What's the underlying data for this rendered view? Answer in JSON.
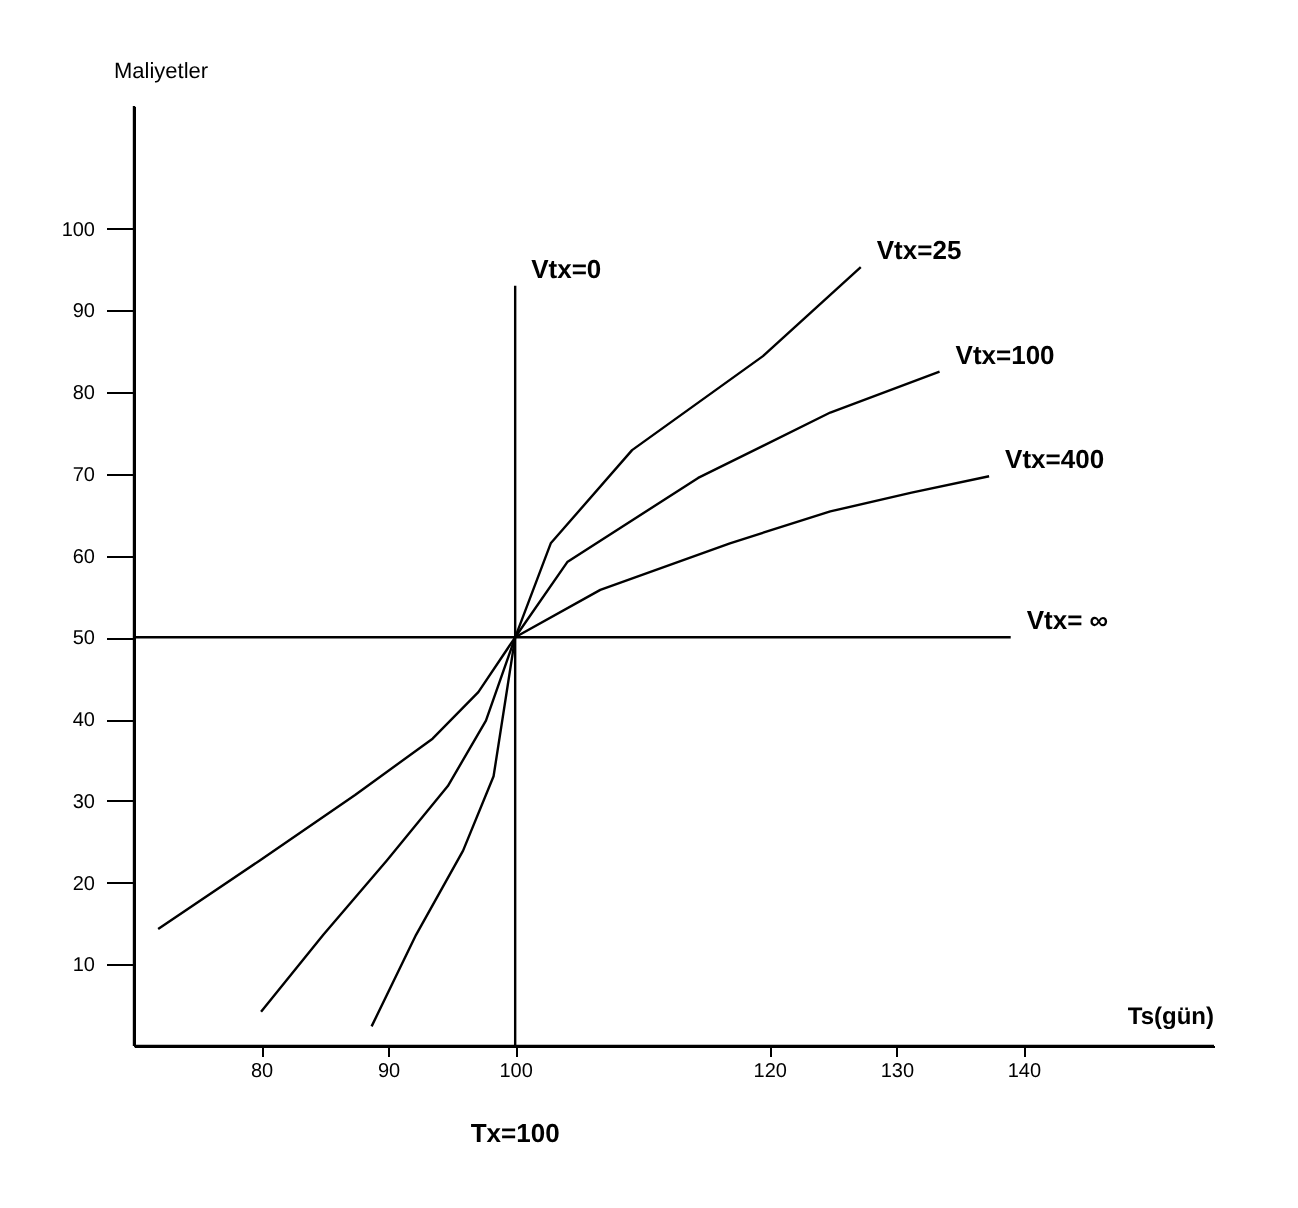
{
  "chart_data": {
    "type": "line",
    "xlabel": "Ts(gün)",
    "ylabel": "Maliyetler",
    "xlim": [
      70,
      155
    ],
    "xticks": [
      80,
      90,
      100,
      120,
      130,
      140
    ],
    "ylim": [
      0,
      115
    ],
    "yticks": [
      10,
      20,
      30,
      40,
      50,
      60,
      70,
      80,
      90,
      100
    ],
    "grid": false,
    "marker": "none",
    "line_style": "solid",
    "series": [
      {
        "name": "Vtx=0",
        "color": "#000000",
        "x": [
          100,
          100
        ],
        "values": [
          0,
          93
        ]
      },
      {
        "name": "Vtx=25",
        "color": "#000000",
        "x": [
          88.7,
          92.2,
          95.9,
          98.3,
          100,
          102.8,
          109.2,
          119.5,
          127.2
        ],
        "values": [
          2.4,
          13.6,
          23.9,
          33,
          50,
          61.5,
          72.9,
          84.4,
          95.3
        ]
      },
      {
        "name": "Vtx=100",
        "color": "#000000",
        "x": [
          80,
          84.9,
          89.9,
          94.7,
          97.7,
          100,
          104.1,
          114.4,
          124.8,
          133.4
        ],
        "values": [
          4.2,
          13.6,
          22.7,
          31.8,
          39.8,
          50,
          59.2,
          69.5,
          77.5,
          82.5
        ]
      },
      {
        "name": "Vtx=400",
        "color": "#000000",
        "x": [
          71.9,
          79.9,
          87.4,
          93.5,
          97.1,
          100,
          106.7,
          116.9,
          124.8,
          131.2,
          137.3
        ],
        "values": [
          14.3,
          22.7,
          30.7,
          37.6,
          43.3,
          50,
          55.8,
          61.5,
          65.4,
          67.7,
          69.7
        ]
      },
      {
        "name": "Vtx= ∞",
        "color": "#000000",
        "x": [
          70,
          139
        ],
        "values": [
          50,
          50
        ]
      }
    ],
    "annotations": [
      {
        "text": "Tx=100",
        "x": 100,
        "y": 0
      }
    ]
  }
}
